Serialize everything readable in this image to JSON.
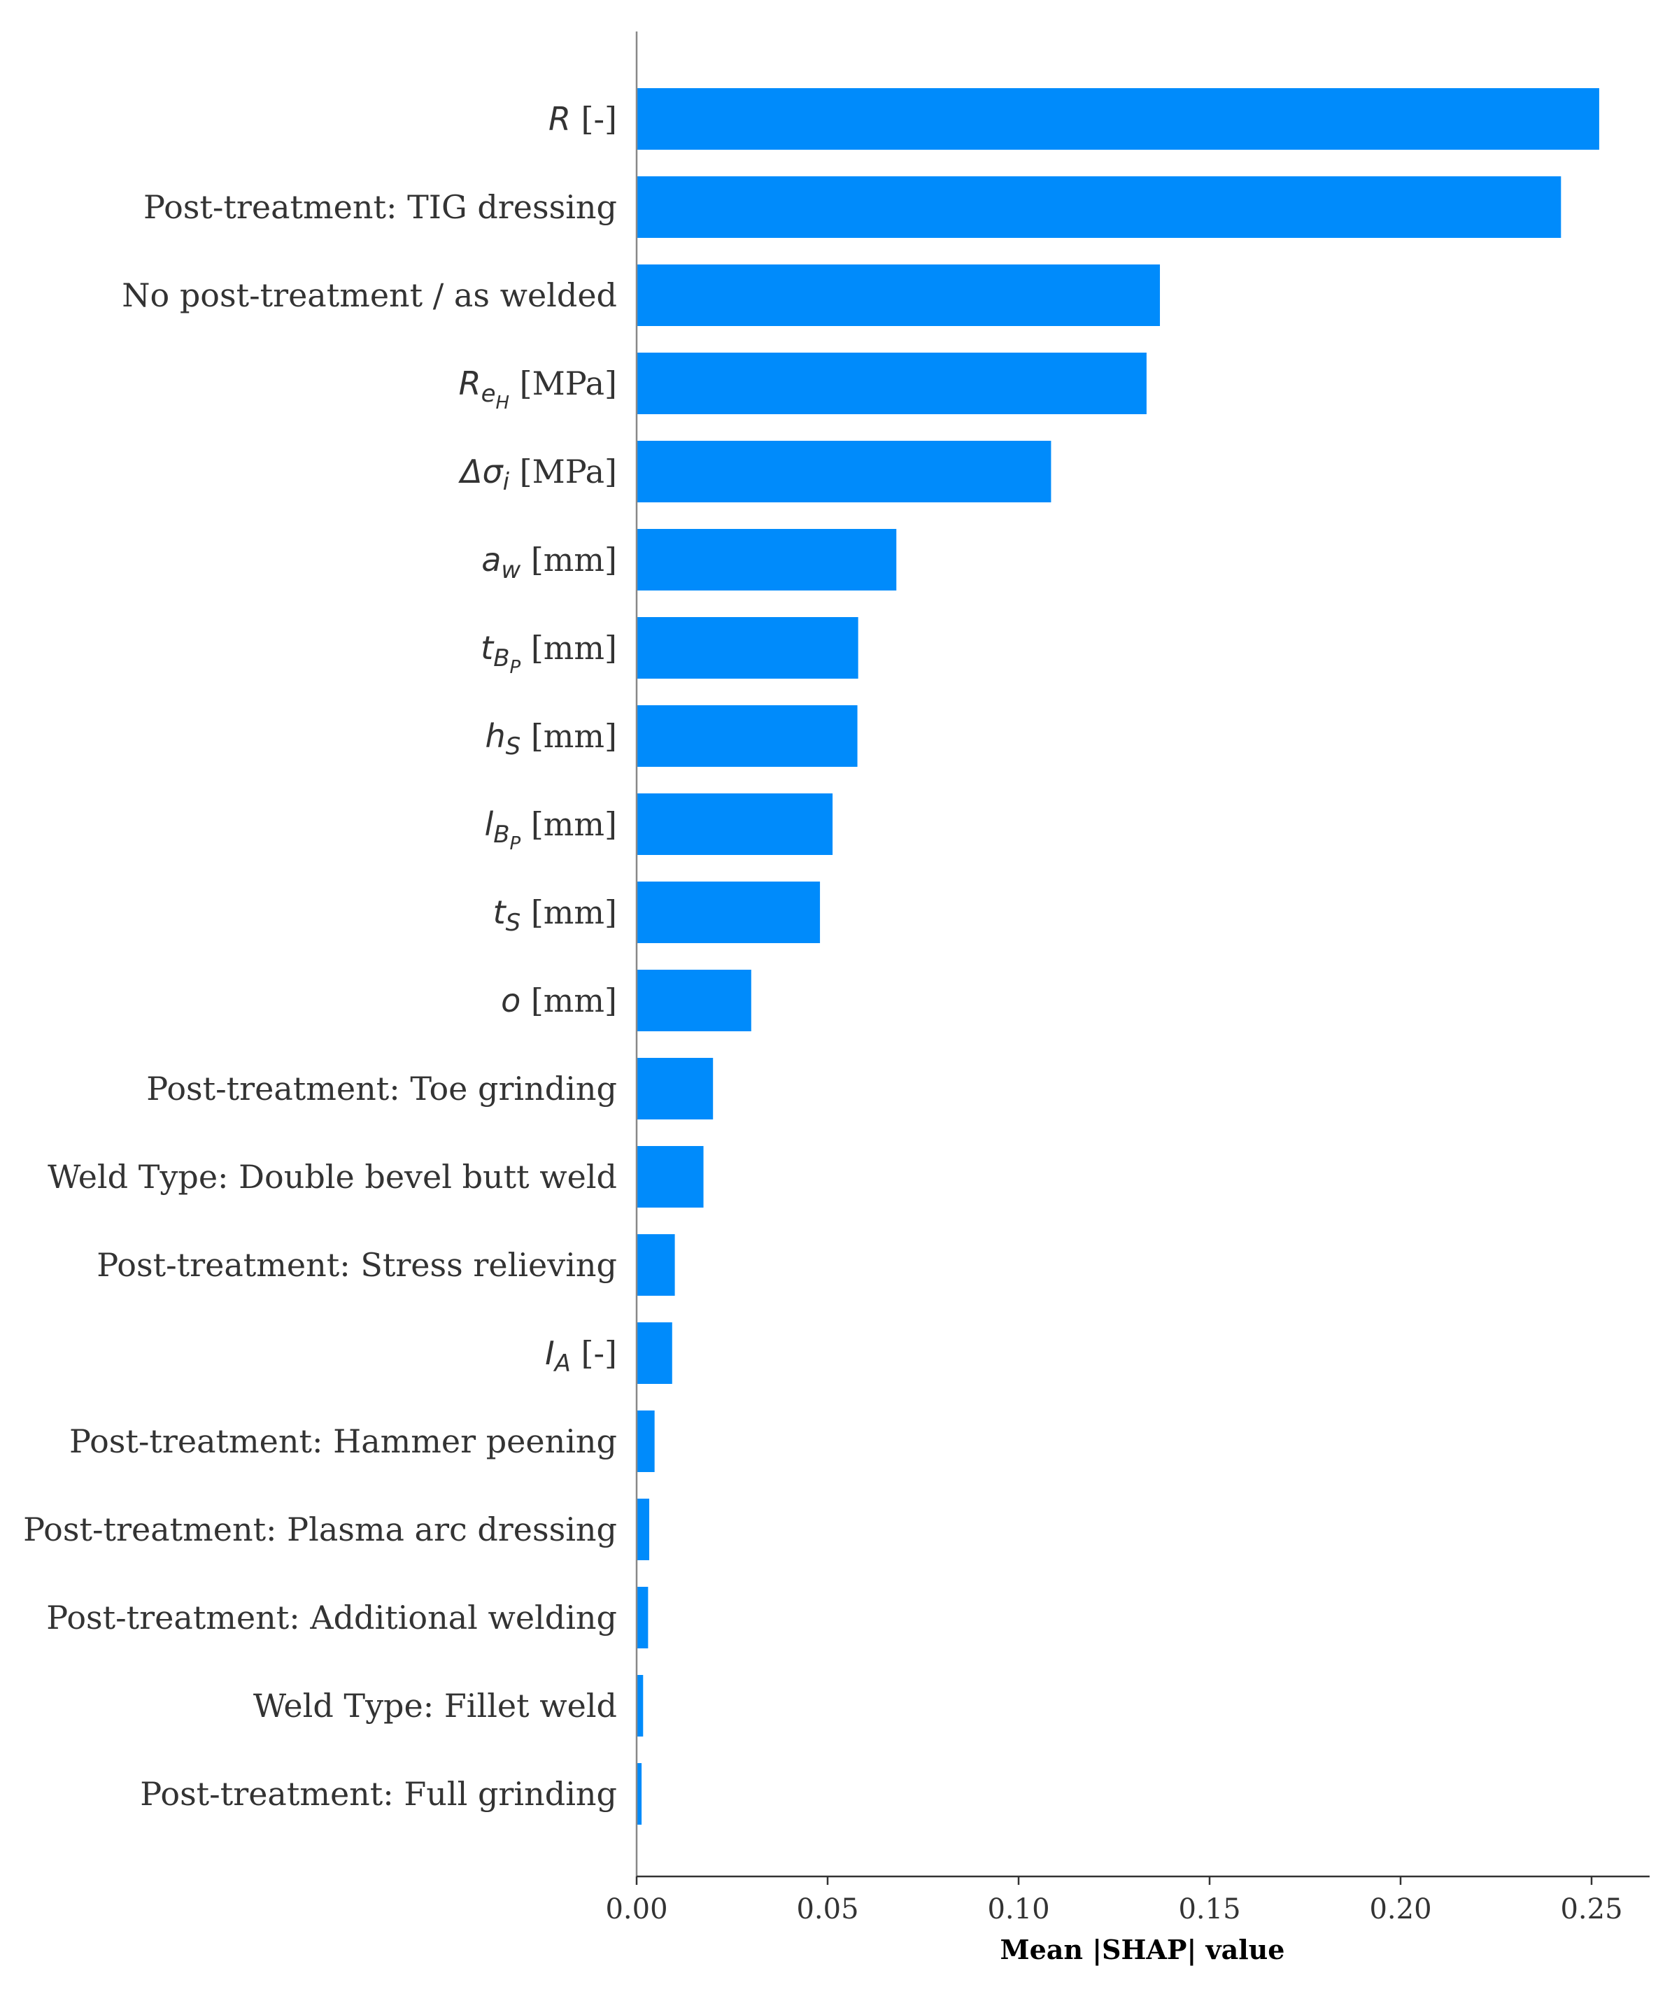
{
  "chart_data": {
    "type": "bar",
    "orientation": "horizontal",
    "xlabel": "Mean |SHAP| value",
    "xlim": [
      0.0,
      0.265
    ],
    "xticks": [
      "0.00",
      "0.05",
      "0.10",
      "0.15",
      "0.20",
      "0.25"
    ],
    "xtick_values": [
      0.0,
      0.05,
      0.1,
      0.15,
      0.2,
      0.25
    ],
    "bar_color": "#008bfb",
    "categories": [
      {
        "label": "R [-]",
        "value": 0.252,
        "parts": [
          {
            "t": "R",
            "m": true
          },
          {
            "t": " [-]"
          }
        ]
      },
      {
        "label": "Post-treatment: TIG dressing",
        "value": 0.242,
        "parts": [
          {
            "t": "Post-treatment: TIG dressing"
          }
        ]
      },
      {
        "label": "No post-treatment / as welded",
        "value": 0.137,
        "parts": [
          {
            "t": "No post-treatment / as welded"
          }
        ]
      },
      {
        "label": "R_eH [MPa]",
        "value": 0.1335,
        "parts": [
          {
            "t": "R",
            "m": true
          },
          {
            "t": "e",
            "m": true,
            "sub": 1
          },
          {
            "t": "H",
            "m": true,
            "sub": 2
          },
          {
            "t": " [MPa]"
          }
        ]
      },
      {
        "label": "Δσ_i [MPa]",
        "value": 0.1085,
        "parts": [
          {
            "t": "Δσ",
            "m": true
          },
          {
            "t": "i",
            "m": true,
            "sub": 1
          },
          {
            "t": " [MPa]"
          }
        ]
      },
      {
        "label": "a_w [mm]",
        "value": 0.068,
        "parts": [
          {
            "t": "a",
            "m": true
          },
          {
            "t": "w",
            "m": true,
            "sub": 1
          },
          {
            "t": " [mm]"
          }
        ]
      },
      {
        "label": "t_Bp [mm]",
        "value": 0.058,
        "parts": [
          {
            "t": "t",
            "m": true
          },
          {
            "t": "B",
            "m": true,
            "sub": 1
          },
          {
            "t": "P",
            "m": true,
            "sub": 2
          },
          {
            "t": " [mm]"
          }
        ]
      },
      {
        "label": "h_S [mm]",
        "value": 0.0578,
        "parts": [
          {
            "t": "h",
            "m": true
          },
          {
            "t": "S",
            "m": true,
            "sub": 1
          },
          {
            "t": " [mm]"
          }
        ]
      },
      {
        "label": "l_Bp [mm]",
        "value": 0.0513,
        "parts": [
          {
            "t": "l",
            "m": true
          },
          {
            "t": "B",
            "m": true,
            "sub": 1
          },
          {
            "t": "P",
            "m": true,
            "sub": 2
          },
          {
            "t": " [mm]"
          }
        ]
      },
      {
        "label": "t_S [mm]",
        "value": 0.048,
        "parts": [
          {
            "t": "t",
            "m": true
          },
          {
            "t": "S",
            "m": true,
            "sub": 1
          },
          {
            "t": " [mm]"
          }
        ]
      },
      {
        "label": "o [mm]",
        "value": 0.03,
        "parts": [
          {
            "t": "o",
            "m": true
          },
          {
            "t": " [mm]"
          }
        ]
      },
      {
        "label": "Post-treatment: Toe grinding",
        "value": 0.02,
        "parts": [
          {
            "t": "Post-treatment: Toe grinding"
          }
        ]
      },
      {
        "label": "Weld Type: Double bevel butt weld",
        "value": 0.0175,
        "parts": [
          {
            "t": "Weld Type: Double bevel butt weld"
          }
        ]
      },
      {
        "label": "Post-treatment: Stress relieving",
        "value": 0.01,
        "parts": [
          {
            "t": "Post-treatment: Stress relieving"
          }
        ]
      },
      {
        "label": "I_A [-]",
        "value": 0.0093,
        "parts": [
          {
            "t": "I",
            "m": true
          },
          {
            "t": "A",
            "m": true,
            "sub": 1
          },
          {
            "t": " [-]"
          }
        ]
      },
      {
        "label": "Post-treatment: Hammer peening",
        "value": 0.0047,
        "parts": [
          {
            "t": "Post-treatment: Hammer peening"
          }
        ]
      },
      {
        "label": "Post-treatment: Plasma arc dressing",
        "value": 0.0033,
        "parts": [
          {
            "t": "Post-treatment: Plasma arc dressing"
          }
        ]
      },
      {
        "label": "Post-treatment: Additional welding",
        "value": 0.003,
        "parts": [
          {
            "t": "Post-treatment: Additional welding"
          }
        ]
      },
      {
        "label": "Weld Type: Fillet weld",
        "value": 0.0017,
        "parts": [
          {
            "t": "Weld Type: Fillet weld"
          }
        ]
      },
      {
        "label": "Post-treatment: Full grinding",
        "value": 0.0013,
        "parts": [
          {
            "t": "Post-treatment: Full grinding"
          }
        ]
      }
    ]
  }
}
